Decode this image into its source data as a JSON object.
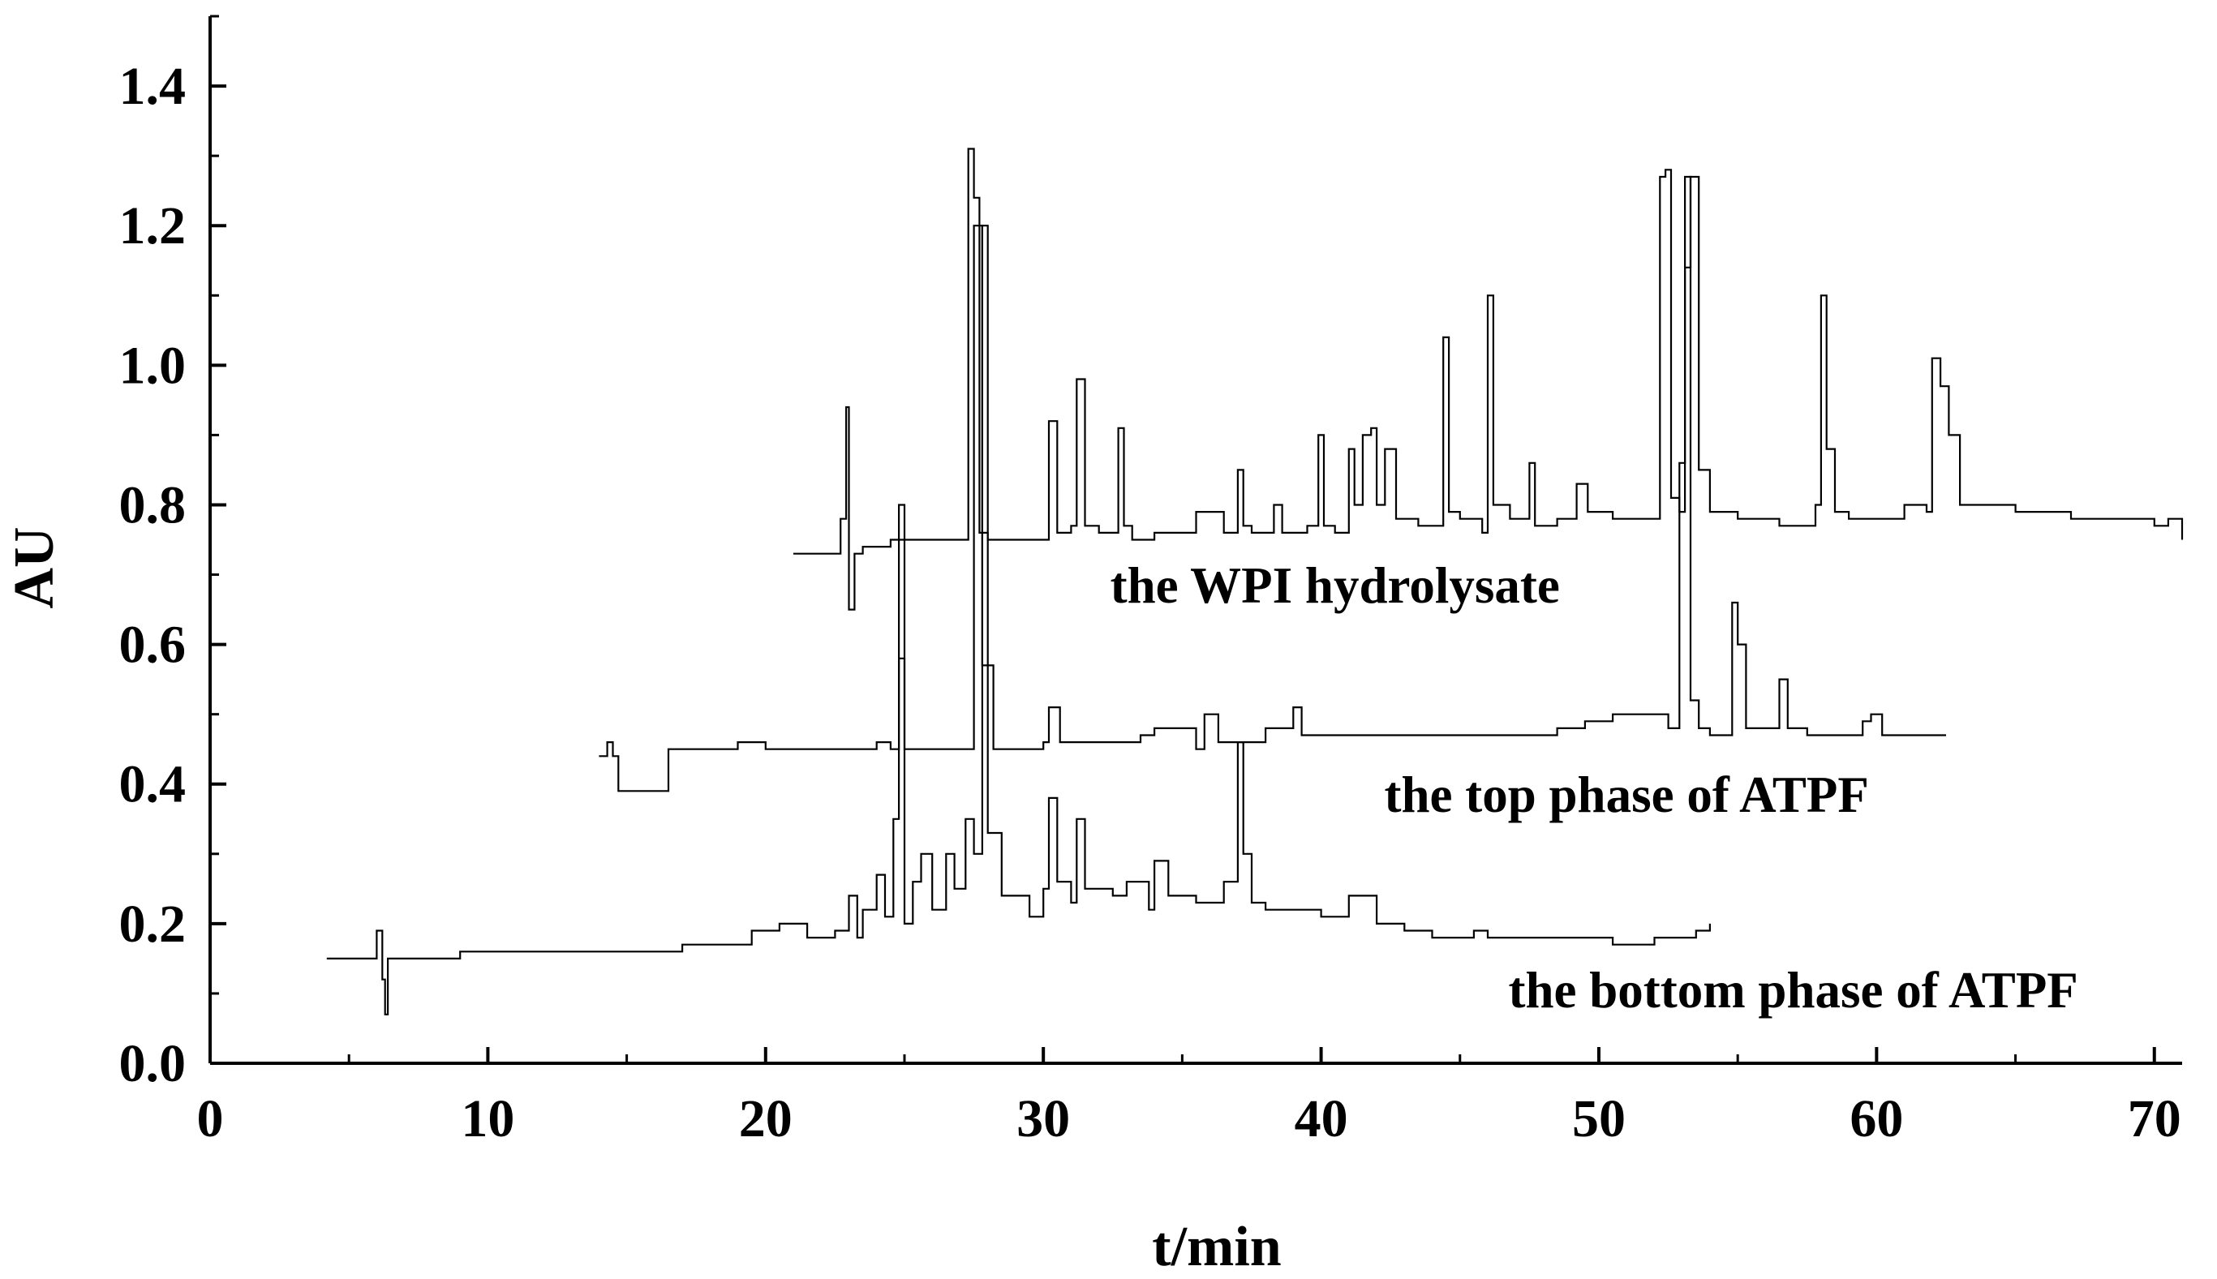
{
  "chart_data": {
    "type": "line",
    "title": "",
    "xlabel": "t/min",
    "ylabel": "AU",
    "xlim": [
      0,
      71
    ],
    "ylim": [
      0,
      1.5
    ],
    "x_ticks": [
      0,
      10,
      20,
      30,
      40,
      50,
      60,
      70
    ],
    "y_ticks": [
      0.0,
      0.2,
      0.4,
      0.6,
      0.8,
      1.0,
      1.2,
      1.4
    ],
    "x_tick_labels": [
      "0",
      "10",
      "20",
      "30",
      "40",
      "50",
      "60",
      "70"
    ],
    "y_tick_labels": [
      "0.0",
      "0.2",
      "0.4",
      "0.6",
      "0.8",
      "1.0",
      "1.2",
      "1.4"
    ],
    "grid": false,
    "legend": "none",
    "line_color": "#000000",
    "annotations": [
      {
        "text": "the WPI hydrolysate",
        "x": 40.5,
        "y": 0.66
      },
      {
        "text": "the top phase of ATPF",
        "x": 51,
        "y": 0.36
      },
      {
        "text": "the bottom phase of ATPF",
        "x": 57,
        "y": 0.08
      }
    ],
    "series": [
      {
        "name": "the WPI hydrolysate",
        "x": [
          21,
          22.3,
          22.7,
          22.9,
          23.0,
          23.2,
          23.5,
          24.5,
          26,
          27.0,
          27.3,
          27.5,
          27.7,
          28.0,
          29,
          30.0,
          30.2,
          30.5,
          31.0,
          31.2,
          31.5,
          32.0,
          32.7,
          32.9,
          33.2,
          34,
          35.5,
          36.5,
          37.0,
          37.2,
          37.5,
          38.3,
          38.6,
          39.5,
          39.9,
          40.1,
          40.5,
          41.0,
          41.2,
          41.5,
          41.8,
          42.0,
          42.3,
          42.7,
          43.5,
          44.4,
          44.6,
          45.0,
          45.8,
          46.0,
          46.2,
          46.8,
          47.5,
          47.7,
          48.0,
          48.5,
          49.2,
          49.6,
          50.5,
          51.5,
          52.2,
          52.4,
          52.6,
          52.9,
          53.1,
          53.3,
          53.6,
          54.0,
          55,
          55.5,
          56.5,
          57.8,
          58.0,
          58.2,
          58.5,
          59.0,
          60.0,
          61.0,
          61.8,
          62.0,
          62.3,
          62.6,
          63.0,
          65.0,
          67.0,
          69.0,
          70.0,
          70.5,
          71.0
        ],
        "y": [
          0.73,
          0.73,
          0.78,
          0.94,
          0.65,
          0.73,
          0.74,
          0.75,
          0.75,
          0.75,
          1.31,
          1.24,
          0.76,
          0.75,
          0.75,
          0.75,
          0.92,
          0.76,
          0.77,
          0.98,
          0.77,
          0.76,
          0.91,
          0.77,
          0.75,
          0.76,
          0.79,
          0.76,
          0.85,
          0.77,
          0.76,
          0.8,
          0.76,
          0.77,
          0.9,
          0.77,
          0.76,
          0.88,
          0.8,
          0.9,
          0.91,
          0.8,
          0.88,
          0.78,
          0.77,
          1.04,
          0.79,
          0.78,
          0.76,
          1.1,
          0.8,
          0.78,
          0.86,
          0.77,
          0.77,
          0.78,
          0.83,
          0.79,
          0.78,
          0.78,
          1.27,
          1.28,
          0.81,
          0.79,
          1.14,
          1.27,
          0.85,
          0.79,
          0.78,
          0.78,
          0.77,
          0.8,
          1.1,
          0.88,
          0.79,
          0.78,
          0.78,
          0.8,
          0.79,
          1.01,
          0.97,
          0.9,
          0.8,
          0.79,
          0.78,
          0.78,
          0.77,
          0.78,
          0.75
        ]
      },
      {
        "name": "the top phase of ATPF",
        "x": [
          14.0,
          14.3,
          14.5,
          14.7,
          16.5,
          17.0,
          19.0,
          20.0,
          23.5,
          24.0,
          24.5,
          24.8,
          25.0,
          27.0,
          27.5,
          27.8,
          28.2,
          29.5,
          30.0,
          30.2,
          30.6,
          31.5,
          33.5,
          34.0,
          35.5,
          35.8,
          36.0,
          36.3,
          37.0,
          38.0,
          39.0,
          39.3,
          40.0,
          42.0,
          45.0,
          47.5,
          48.5,
          49.5,
          50.5,
          51.5,
          52.5,
          52.9,
          53.1,
          53.3,
          53.6,
          54.0,
          54.8,
          55.0,
          55.3,
          56.0,
          56.5,
          56.8,
          57.5,
          59.5,
          59.8,
          60.2,
          62.5
        ],
        "y": [
          0.44,
          0.46,
          0.44,
          0.39,
          0.45,
          0.45,
          0.46,
          0.45,
          0.45,
          0.46,
          0.45,
          0.58,
          0.45,
          0.45,
          1.2,
          0.57,
          0.45,
          0.45,
          0.46,
          0.51,
          0.46,
          0.46,
          0.47,
          0.48,
          0.45,
          0.5,
          0.5,
          0.46,
          0.46,
          0.48,
          0.51,
          0.47,
          0.47,
          0.47,
          0.47,
          0.47,
          0.48,
          0.49,
          0.5,
          0.5,
          0.48,
          0.86,
          1.27,
          0.52,
          0.48,
          0.47,
          0.66,
          0.6,
          0.48,
          0.48,
          0.55,
          0.48,
          0.47,
          0.49,
          0.5,
          0.47,
          0.47
        ]
      },
      {
        "name": "the bottom phase of ATPF",
        "x": [
          4.2,
          5.8,
          6.0,
          6.2,
          6.3,
          6.4,
          7.0,
          9.0,
          12.0,
          15.0,
          17.0,
          18.5,
          19.5,
          20.5,
          21.5,
          22.5,
          23.0,
          23.3,
          23.5,
          24.0,
          24.3,
          24.6,
          24.8,
          25.0,
          25.3,
          25.6,
          26.0,
          26.5,
          26.8,
          27.2,
          27.5,
          27.8,
          28.0,
          28.5,
          29.5,
          30.0,
          30.2,
          30.5,
          31.0,
          31.2,
          31.5,
          32.5,
          33.0,
          33.8,
          34.0,
          34.5,
          35.5,
          36.5,
          37.0,
          37.2,
          37.5,
          38.0,
          40.0,
          41.0,
          42.0,
          43.0,
          44.0,
          45.0,
          45.5,
          46.0,
          47.5,
          50.0,
          50.5,
          52.0,
          53.5,
          54.0
        ],
        "y": [
          0.15,
          0.15,
          0.19,
          0.12,
          0.07,
          0.15,
          0.15,
          0.16,
          0.16,
          0.16,
          0.17,
          0.17,
          0.19,
          0.2,
          0.18,
          0.19,
          0.24,
          0.18,
          0.22,
          0.27,
          0.21,
          0.35,
          0.8,
          0.2,
          0.26,
          0.3,
          0.22,
          0.3,
          0.25,
          0.35,
          0.3,
          1.2,
          0.33,
          0.24,
          0.21,
          0.25,
          0.38,
          0.26,
          0.23,
          0.35,
          0.25,
          0.24,
          0.26,
          0.22,
          0.29,
          0.24,
          0.23,
          0.26,
          0.46,
          0.3,
          0.23,
          0.22,
          0.21,
          0.24,
          0.2,
          0.19,
          0.18,
          0.18,
          0.19,
          0.18,
          0.18,
          0.18,
          0.17,
          0.18,
          0.19,
          0.2
        ]
      }
    ]
  }
}
